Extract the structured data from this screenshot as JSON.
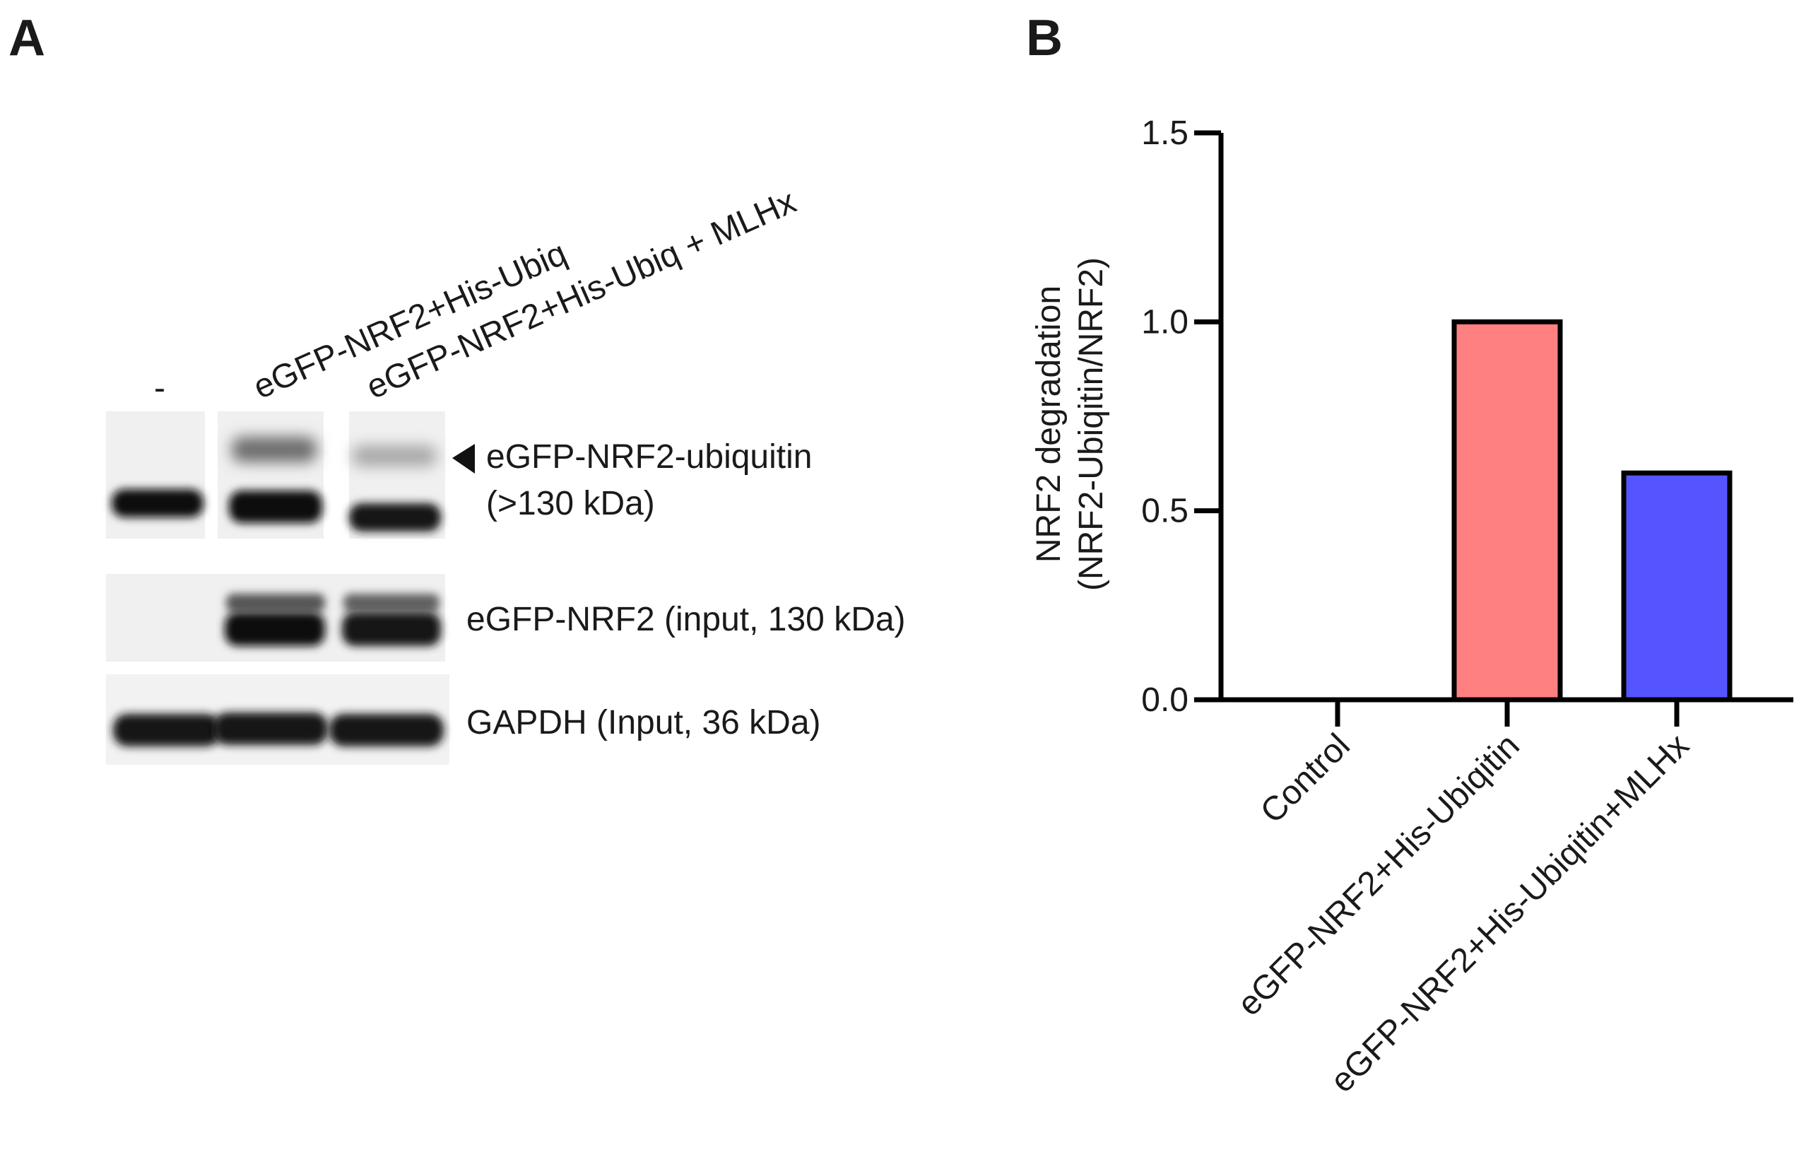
{
  "panel_a": {
    "letter": "A",
    "lane_labels": [
      "-",
      "eGFP-NRF2+His-Ubiq",
      "eGFP-NRF2+His-Ubiq + MLHx"
    ],
    "band_labels": {
      "ubiquitin_line1": "eGFP-NRF2-ubiquitin",
      "ubiquitin_line2": "(>130 kDa)",
      "input": "eGFP-NRF2 (input, 130 kDa)",
      "gapdh": "GAPDH (Input, 36 kDa)"
    },
    "arrow_icon": "left-pointing-triangle"
  },
  "panel_b": {
    "letter": "B"
  },
  "chart_data": {
    "type": "bar",
    "categories": [
      "Control",
      "eGFP-NRF2+His-Ubiqitin",
      "eGFP-NRF2+His-Ubiqitin+MLHx"
    ],
    "values": [
      0,
      1.0,
      0.6
    ],
    "colors": [
      "#ff8080",
      "#ff8080",
      "#5555ff"
    ],
    "bar_edge_color": "#000000",
    "ylabel_line1": "NRF2 degradation",
    "ylabel_line2": "(NRF2-Ubiqitin/NRF2)",
    "xlabel": "",
    "ylim": [
      0,
      1.5
    ],
    "yticks": [
      0.0,
      0.5,
      1.0,
      1.5
    ],
    "ytick_labels": [
      "0.0",
      "0.5",
      "1.0",
      "1.5"
    ],
    "grid": false,
    "legend": "none"
  }
}
